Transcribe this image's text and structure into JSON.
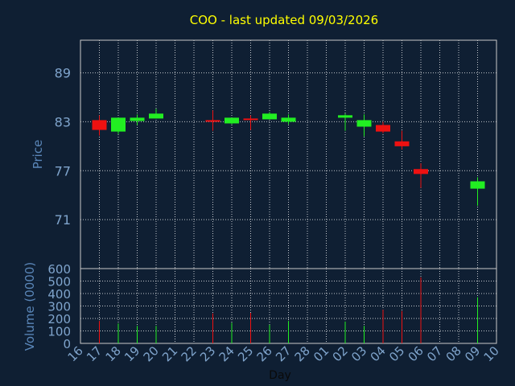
{
  "chart_data": [
    {
      "type": "candlestick",
      "title": "COO - last updated 09/03/2026",
      "ylabel": "Price",
      "ylim": [
        65,
        93
      ],
      "yticks": [
        71,
        77,
        83,
        89
      ],
      "grid": true,
      "colors": {
        "up": "#22ee22",
        "down": "#ee1111",
        "title": "#ffff00",
        "axis_label": "#5a86b8",
        "tick": "#7fa4cc",
        "grid": "#ffffff",
        "background": "#0f1f33"
      },
      "candles": [
        {
          "day": "17",
          "open": 83.2,
          "close": 82.0,
          "high": 83.8,
          "low": 81.3
        },
        {
          "day": "18",
          "open": 81.8,
          "close": 83.5,
          "high": 83.5,
          "low": 81.5
        },
        {
          "day": "19",
          "open": 83.1,
          "close": 83.5,
          "high": 83.9,
          "low": 82.6
        },
        {
          "day": "20",
          "open": 83.4,
          "close": 84.0,
          "high": 84.6,
          "low": 83.4
        },
        {
          "day": "23",
          "open": 83.2,
          "close": 83.0,
          "high": 84.4,
          "low": 81.9
        },
        {
          "day": "24",
          "open": 82.8,
          "close": 83.5,
          "high": 83.5,
          "low": 82.7
        },
        {
          "day": "25",
          "open": 83.4,
          "close": 83.3,
          "high": 83.8,
          "low": 82.0
        },
        {
          "day": "26",
          "open": 83.3,
          "close": 84.0,
          "high": 84.2,
          "low": 83.3
        },
        {
          "day": "27",
          "open": 83.0,
          "close": 83.5,
          "high": 83.9,
          "low": 82.7
        },
        {
          "day": "02",
          "open": 83.5,
          "close": 83.8,
          "high": 84.0,
          "low": 81.9
        },
        {
          "day": "03",
          "open": 82.4,
          "close": 83.2,
          "high": 83.9,
          "low": 81.2
        },
        {
          "day": "04",
          "open": 82.6,
          "close": 81.8,
          "high": 83.0,
          "low": 81.6
        },
        {
          "day": "05",
          "open": 80.6,
          "close": 80.0,
          "high": 81.9,
          "low": 79.6
        },
        {
          "day": "06",
          "open": 77.2,
          "close": 76.6,
          "high": 77.9,
          "low": 74.9
        },
        {
          "day": "09",
          "open": 74.8,
          "close": 75.7,
          "high": 76.2,
          "low": 72.7
        }
      ]
    },
    {
      "type": "bar",
      "xlabel": "Day",
      "ylabel": "Volume (0000)",
      "ylim": [
        0,
        600
      ],
      "yticks": [
        0,
        100,
        200,
        300,
        400,
        500,
        600
      ],
      "categories": [
        "16",
        "17",
        "18",
        "19",
        "20",
        "21",
        "22",
        "23",
        "24",
        "25",
        "26",
        "27",
        "28",
        "01",
        "02",
        "03",
        "04",
        "05",
        "06",
        "07",
        "08",
        "09",
        "10"
      ],
      "volumes": [
        {
          "day": "17",
          "value": 180,
          "direction": "down"
        },
        {
          "day": "18",
          "value": 160,
          "direction": "up"
        },
        {
          "day": "19",
          "value": 140,
          "direction": "up"
        },
        {
          "day": "20",
          "value": 140,
          "direction": "up"
        },
        {
          "day": "23",
          "value": 240,
          "direction": "down"
        },
        {
          "day": "24",
          "value": 165,
          "direction": "up"
        },
        {
          "day": "25",
          "value": 245,
          "direction": "down"
        },
        {
          "day": "26",
          "value": 150,
          "direction": "up"
        },
        {
          "day": "27",
          "value": 180,
          "direction": "up"
        },
        {
          "day": "02",
          "value": 175,
          "direction": "up"
        },
        {
          "day": "03",
          "value": 140,
          "direction": "up"
        },
        {
          "day": "04",
          "value": 270,
          "direction": "down"
        },
        {
          "day": "05",
          "value": 260,
          "direction": "down"
        },
        {
          "day": "06",
          "value": 530,
          "direction": "down"
        },
        {
          "day": "09",
          "value": 370,
          "direction": "up"
        }
      ]
    }
  ]
}
